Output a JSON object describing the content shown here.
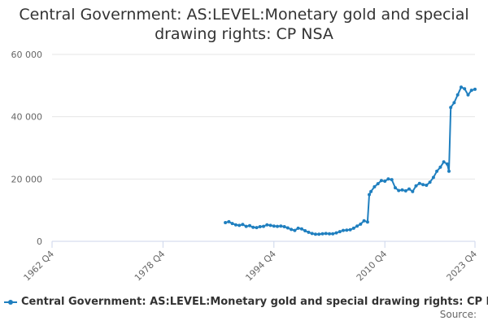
{
  "colors": {
    "series": "#1f7fbf",
    "grid": "#e6e6e6",
    "axis": "#ccd6eb"
  },
  "chart_data": {
    "type": "line",
    "title_lines": [
      "Central Government: AS:LEVEL:Monetary gold and special",
      "drawing rights: CP NSA"
    ],
    "xlabel": "",
    "ylabel": "",
    "x_ticks": [
      "1962 Q4",
      "1978 Q4",
      "1994 Q4",
      "2010 Q4",
      "2023 Q4"
    ],
    "y_ticks": [
      "0",
      "20 000",
      "40 000",
      "60 000"
    ],
    "ylim": [
      0,
      60000
    ],
    "grid": true,
    "legend_position": "bottom",
    "source_label": "Source:",
    "series": [
      {
        "name": "Central Government: AS:LEVEL:Monetary gold and special drawing rights: CP NSA",
        "points": [
          [
            "1987 Q4",
            6000
          ],
          [
            "1988 Q2",
            6300
          ],
          [
            "1988 Q4",
            5700
          ],
          [
            "1989 Q2",
            5300
          ],
          [
            "1989 Q4",
            5100
          ],
          [
            "1990 Q2",
            5400
          ],
          [
            "1990 Q4",
            4800
          ],
          [
            "1991 Q2",
            5000
          ],
          [
            "1991 Q4",
            4500
          ],
          [
            "1992 Q2",
            4400
          ],
          [
            "1992 Q4",
            4700
          ],
          [
            "1993 Q2",
            4800
          ],
          [
            "1993 Q4",
            5300
          ],
          [
            "1994 Q2",
            5100
          ],
          [
            "1994 Q4",
            4900
          ],
          [
            "1995 Q2",
            4800
          ],
          [
            "1995 Q4",
            4900
          ],
          [
            "1996 Q2",
            4700
          ],
          [
            "1996 Q4",
            4300
          ],
          [
            "1997 Q2",
            3800
          ],
          [
            "1997 Q4",
            3500
          ],
          [
            "1998 Q2",
            4200
          ],
          [
            "1998 Q4",
            4000
          ],
          [
            "1999 Q2",
            3400
          ],
          [
            "1999 Q4",
            2900
          ],
          [
            "2000 Q2",
            2500
          ],
          [
            "2000 Q4",
            2300
          ],
          [
            "2001 Q2",
            2300
          ],
          [
            "2001 Q4",
            2400
          ],
          [
            "2002 Q2",
            2500
          ],
          [
            "2002 Q4",
            2400
          ],
          [
            "2003 Q2",
            2400
          ],
          [
            "2003 Q4",
            2700
          ],
          [
            "2004 Q2",
            3100
          ],
          [
            "2004 Q4",
            3500
          ],
          [
            "2005 Q2",
            3600
          ],
          [
            "2005 Q4",
            3700
          ],
          [
            "2006 Q2",
            4200
          ],
          [
            "2006 Q4",
            4900
          ],
          [
            "2007 Q2",
            5500
          ],
          [
            "2007 Q4",
            6600
          ],
          [
            "2008 Q2",
            6200
          ],
          [
            "2008 Q3",
            15000
          ],
          [
            "2008 Q4",
            16000
          ],
          [
            "2009 Q2",
            17500
          ],
          [
            "2009 Q4",
            18500
          ],
          [
            "2010 Q2",
            19500
          ],
          [
            "2010 Q4",
            19300
          ],
          [
            "2011 Q2",
            20000
          ],
          [
            "2011 Q4",
            19800
          ],
          [
            "2012 Q2",
            17200
          ],
          [
            "2012 Q4",
            16300
          ],
          [
            "2013 Q2",
            16500
          ],
          [
            "2013 Q4",
            16200
          ],
          [
            "2014 Q2",
            16800
          ],
          [
            "2014 Q4",
            16000
          ],
          [
            "2015 Q2",
            17800
          ],
          [
            "2015 Q4",
            18600
          ],
          [
            "2016 Q2",
            18200
          ],
          [
            "2016 Q4",
            18000
          ],
          [
            "2017 Q2",
            19000
          ],
          [
            "2017 Q4",
            20500
          ],
          [
            "2018 Q2",
            22500
          ],
          [
            "2018 Q4",
            23800
          ],
          [
            "2019 Q2",
            25500
          ],
          [
            "2019 Q4",
            24800
          ],
          [
            "2020 Q1",
            22500
          ],
          [
            "2020 Q2",
            43000
          ],
          [
            "2020 Q4",
            44500
          ],
          [
            "2021 Q2",
            47000
          ],
          [
            "2021 Q4",
            49500
          ],
          [
            "2022 Q2",
            49000
          ],
          [
            "2022 Q4",
            47000
          ],
          [
            "2023 Q2",
            48500
          ],
          [
            "2023 Q4",
            48800
          ]
        ]
      }
    ]
  }
}
